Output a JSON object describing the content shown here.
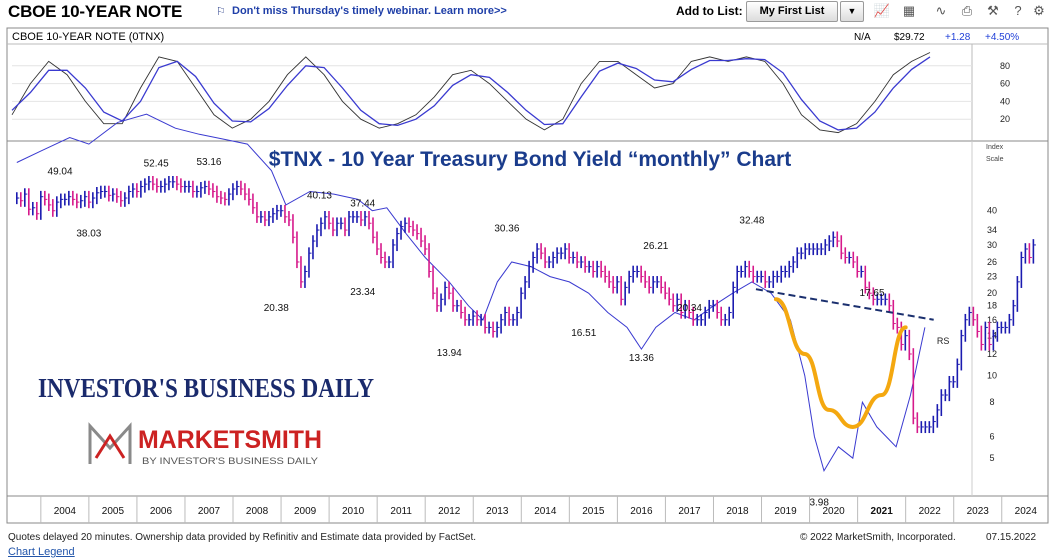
{
  "header": {
    "title": "CBOE 10-YEAR NOTE",
    "promo": "Don't miss Thursday's timely webinar. Learn more>>",
    "add_to_list_label": "Add to List:",
    "list_selected": "My First List",
    "tool_icons": [
      "line-chart-icon",
      "grid-icon",
      "curve-icon",
      "print-icon",
      "wrench-icon",
      "help-icon",
      "settings-icon"
    ]
  },
  "indicator": {
    "label": "CBOE 10-YEAR NOTE   (0TNX)",
    "na": "N/A",
    "price": "$29.72",
    "change": "+1.28",
    "change_pct": "+4.50%",
    "change_color": "#1f3fd8"
  },
  "overlay": {
    "chart_title": "$TNX - 10 Year Treasury Bond Yield “monthly” Chart",
    "ibd_logo": "INVESTOR'S BUSINESS DAILY",
    "ms_logo": "MARKETSMITH",
    "ms_sub": "BY INVESTOR'S BUSINESS DAILY",
    "rs_label": "RS"
  },
  "footer": {
    "disclaimer": "Quotes delayed 20 minutes. Ownership data provided by Refinitiv and Estimate data provided by FactSet.",
    "copyright": "© 2022 MarketSmith, Incorporated.",
    "date": "07.15.2022",
    "legend_link": "Chart Legend"
  },
  "colors": {
    "bar_pink": "#d6198b",
    "bar_blue": "#1b1bb0",
    "rs_line": "#3a3ad0",
    "cup": "#f4a810",
    "trend": "#1a2f6e",
    "title_blue": "#1a3c8c",
    "ibd_navy": "#1a2a6c",
    "ms_red": "#cc2222"
  },
  "chart_data": [
    {
      "type": "line",
      "title": "",
      "yticks": [
        20,
        40,
        60,
        80
      ],
      "ylim": [
        0,
        100
      ],
      "series": [
        {
          "values": [
            25,
            60,
            85,
            70,
            40,
            15,
            15,
            55,
            90,
            85,
            55,
            25,
            10,
            20,
            40,
            70,
            90,
            70,
            40,
            20,
            10,
            15,
            25,
            45,
            70,
            75,
            60,
            40,
            20,
            8,
            20,
            60,
            85,
            85,
            70,
            55,
            60,
            85,
            90,
            85,
            90,
            85,
            60,
            25,
            8,
            5,
            15,
            40,
            70,
            85,
            95
          ]
        },
        {
          "values": [
            30,
            50,
            75,
            75,
            55,
            28,
            18,
            40,
            78,
            85,
            68,
            38,
            18,
            17,
            32,
            58,
            80,
            78,
            55,
            30,
            15,
            13,
            20,
            35,
            58,
            70,
            67,
            50,
            30,
            14,
            15,
            45,
            74,
            83,
            77,
            64,
            62,
            76,
            86,
            86,
            88,
            87,
            72,
            42,
            18,
            8,
            10,
            28,
            55,
            76,
            90
          ]
        }
      ]
    },
    {
      "type": "bar",
      "title": "$TNX - 10 Year Treasury Bond Yield “monthly” Chart",
      "xlabel": "",
      "ylabel": "Index Scale",
      "y_scale": "log",
      "yticks": [
        5,
        6,
        8,
        10,
        12,
        14,
        16,
        18,
        20,
        23,
        26,
        30,
        34,
        40
      ],
      "x_ticks": [
        "2004",
        "2005",
        "2006",
        "2007",
        "2008",
        "2009",
        "2010",
        "2011",
        "2012",
        "2013",
        "2014",
        "2015",
        "2016",
        "2017",
        "2018",
        "2019",
        "2020",
        "2021",
        "2022",
        "2023",
        "2024"
      ],
      "x_labels_bold": [
        "2021"
      ],
      "x_range": [
        2003.4,
        2024.9
      ],
      "annotations": [
        {
          "x": 2004.4,
          "y": 49.04,
          "text": "49.04",
          "pos": "above"
        },
        {
          "x": 2005.0,
          "y": 38.03,
          "text": "38.03",
          "pos": "below"
        },
        {
          "x": 2006.4,
          "y": 52.45,
          "text": "52.45",
          "pos": "above"
        },
        {
          "x": 2007.5,
          "y": 53.16,
          "text": "53.16",
          "pos": "above"
        },
        {
          "x": 2008.9,
          "y": 20.38,
          "text": "20.38",
          "pos": "below"
        },
        {
          "x": 2009.8,
          "y": 40.13,
          "text": "40.13",
          "pos": "above"
        },
        {
          "x": 2010.7,
          "y": 37.44,
          "text": "37.44",
          "pos": "above"
        },
        {
          "x": 2010.7,
          "y": 23.34,
          "text": "23.34",
          "pos": "below"
        },
        {
          "x": 2012.5,
          "y": 13.94,
          "text": "13.94",
          "pos": "below"
        },
        {
          "x": 2013.7,
          "y": 30.36,
          "text": "30.36",
          "pos": "above"
        },
        {
          "x": 2015.3,
          "y": 16.51,
          "text": "16.51",
          "pos": "below"
        },
        {
          "x": 2016.5,
          "y": 13.36,
          "text": "13.36",
          "pos": "below"
        },
        {
          "x": 2016.8,
          "y": 26.21,
          "text": "26.21",
          "pos": "above"
        },
        {
          "x": 2017.5,
          "y": 20.34,
          "text": "20.34",
          "pos": "below"
        },
        {
          "x": 2018.8,
          "y": 32.48,
          "text": "32.48",
          "pos": "above"
        },
        {
          "x": 2020.2,
          "y": 3.98,
          "text": "3.98",
          "pos": "below"
        },
        {
          "x": 2021.3,
          "y": 17.65,
          "text": "17.65",
          "pos": "above"
        }
      ],
      "series": [
        {
          "name": "",
          "x_start": 2003.5,
          "step": 0.0833,
          "values": [
            44.5,
            43.5,
            46,
            40.5,
            41,
            39,
            45,
            44,
            42,
            40,
            43,
            44,
            44,
            45,
            44,
            43,
            43.5,
            45,
            43,
            44.5,
            46.5,
            47,
            47,
            45.5,
            46,
            45,
            43.5,
            44.5,
            47,
            48,
            47,
            49,
            50,
            51,
            50,
            49,
            49,
            50,
            51,
            51,
            50,
            49,
            49,
            49,
            47,
            47,
            48.5,
            49,
            48,
            47,
            45,
            44.5,
            44,
            46,
            48,
            49,
            48,
            46,
            44,
            41,
            38,
            38,
            37,
            38,
            39,
            40,
            40,
            38,
            37,
            32,
            26,
            22,
            24,
            28,
            31,
            34,
            36,
            38,
            36,
            34,
            36,
            36,
            34,
            38,
            38,
            38,
            37,
            38,
            36,
            32,
            29,
            27,
            26,
            26,
            30,
            33,
            35,
            36,
            35,
            34,
            33,
            31,
            29,
            24,
            20,
            18,
            19,
            21,
            20,
            18,
            18,
            17,
            16,
            16,
            16.5,
            16,
            16,
            15,
            15,
            14.5,
            15,
            16,
            17,
            16,
            16,
            17,
            20,
            22,
            25,
            27,
            29,
            28,
            26,
            26,
            27,
            28,
            28,
            29,
            27,
            27,
            26,
            26,
            25,
            25,
            24,
            25,
            24,
            23,
            22,
            21,
            22,
            19,
            21,
            23,
            24,
            24,
            23,
            22,
            21,
            22,
            22,
            21,
            20,
            19,
            18,
            19,
            17,
            18,
            17,
            16,
            16,
            16,
            17,
            18,
            18,
            17,
            16,
            16,
            17,
            21,
            24,
            24,
            25,
            24,
            23,
            23,
            23,
            22,
            22,
            23,
            23,
            24,
            24,
            25,
            26,
            28,
            28,
            29,
            29,
            29,
            29,
            29,
            30,
            31,
            32,
            31,
            28,
            27,
            27,
            26,
            24,
            24,
            21,
            20,
            19,
            19,
            19,
            19,
            18,
            15.5,
            15,
            13,
            14,
            12,
            7,
            6.5,
            6.5,
            6.5,
            6.5,
            6.8,
            7.5,
            8.5,
            8.5,
            9.5,
            9.5,
            11,
            14,
            16,
            17,
            16,
            14.5,
            13,
            15,
            13,
            14,
            15,
            15,
            15,
            16,
            18,
            22,
            27,
            29,
            27,
            30
          ]
        },
        {
          "name": "RS",
          "x": [
            2003.5,
            2004.0,
            2004.6,
            2005.0,
            2005.6,
            2006.2,
            2006.8,
            2007.3,
            2007.8,
            2008.3,
            2008.8,
            2009.1,
            2009.6,
            2010.1,
            2010.6,
            2010.9,
            2011.2,
            2011.6,
            2012.0,
            2012.5,
            2012.9,
            2013.2,
            2013.5,
            2013.8,
            2014.2,
            2014.6,
            2015.0,
            2015.4,
            2015.8,
            2016.2,
            2016.5,
            2016.8,
            2017.2,
            2017.6,
            2018.0,
            2018.4,
            2018.8,
            2019.2,
            2019.6,
            2019.9,
            2020.1,
            2020.3,
            2020.6,
            2020.9,
            2021.1,
            2021.4,
            2021.8,
            2022.1,
            2022.4
          ],
          "values": [
            60,
            66,
            74,
            70,
            84,
            90,
            80,
            76,
            73,
            70,
            56,
            42,
            47,
            46,
            44,
            40,
            41,
            33,
            27,
            22,
            18,
            16,
            22,
            26,
            25,
            23,
            22,
            20,
            17,
            15,
            12.5,
            15,
            17,
            16,
            18,
            20,
            22,
            20,
            16,
            10,
            6,
            4.5,
            5.5,
            5,
            8,
            6.5,
            5.5,
            8.5,
            15
          ]
        }
      ],
      "trendline": {
        "x": [
          2019.3,
          2022.5
        ],
        "y": [
          20,
          16
        ]
      },
      "cup": {
        "x": [
          2019.3,
          2019.9,
          2020.4,
          2020.9,
          2021.5,
          2022.0
        ],
        "y": [
          19,
          12,
          7.5,
          6.5,
          8.5,
          15
        ]
      }
    }
  ]
}
